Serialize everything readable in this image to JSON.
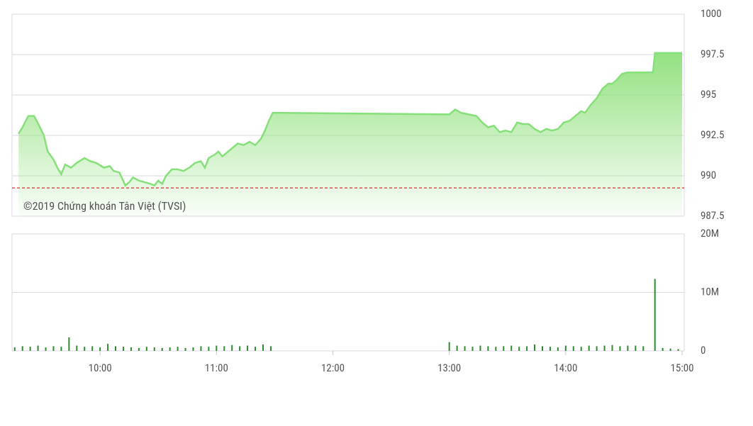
{
  "chart_data": [
    {
      "type": "area",
      "annotation": "©2019 Chứng khoán Tân Việt (TVSI)",
      "x": [
        558,
        560,
        563,
        566,
        569,
        571,
        573,
        576,
        578,
        580,
        582,
        585,
        588,
        592,
        595,
        598,
        602,
        605,
        607,
        610,
        613,
        615,
        617,
        620,
        623,
        626,
        628,
        630,
        632,
        634,
        637,
        640,
        643,
        646,
        649,
        652,
        654,
        656,
        659,
        661,
        663,
        665,
        668,
        671,
        674,
        677,
        680,
        683,
        685,
        687,
        689,
        780,
        783,
        786,
        790,
        794,
        797,
        800,
        803,
        806,
        809,
        812,
        815,
        818,
        821,
        824,
        827,
        830,
        833,
        836,
        839,
        842,
        845,
        848,
        850,
        853,
        856,
        859,
        862,
        864,
        866,
        869,
        872,
        885,
        886,
        900
      ],
      "values": [
        992.6,
        993.0,
        993.7,
        993.7,
        993.0,
        992.5,
        991.5,
        991.0,
        990.5,
        990.1,
        990.7,
        990.5,
        990.8,
        991.1,
        990.9,
        990.8,
        990.5,
        990.6,
        990.3,
        990.2,
        989.4,
        989.6,
        989.9,
        989.7,
        989.6,
        989.5,
        989.4,
        989.7,
        989.5,
        990.0,
        990.4,
        990.4,
        990.3,
        990.5,
        990.8,
        990.9,
        990.5,
        991.1,
        991.3,
        991.5,
        991.2,
        991.4,
        991.7,
        992.0,
        991.9,
        992.1,
        991.9,
        992.3,
        992.8,
        993.4,
        993.9,
        993.8,
        994.1,
        993.9,
        993.8,
        993.7,
        993.3,
        993.0,
        993.1,
        992.7,
        992.8,
        992.7,
        993.3,
        993.2,
        993.2,
        992.9,
        992.7,
        992.9,
        992.8,
        992.9,
        993.3,
        993.4,
        993.7,
        994.0,
        993.9,
        994.4,
        994.8,
        995.4,
        995.7,
        995.7,
        995.9,
        996.3,
        996.4,
        996.4,
        997.6,
        997.6
      ],
      "color": "#86e07a",
      "reference_line": 989.25,
      "reference_color": "#d9302c",
      "xlim": [
        555,
        900
      ],
      "ylim": [
        987.5,
        1000
      ],
      "yticks": [
        1000,
        997.5,
        995,
        992.5,
        990,
        987.5
      ],
      "grid": true
    },
    {
      "type": "bar",
      "x": [
        556,
        560,
        564,
        568,
        572,
        576,
        580,
        584,
        588,
        592,
        596,
        600,
        604,
        608,
        612,
        616,
        620,
        624,
        628,
        632,
        636,
        640,
        644,
        648,
        652,
        656,
        660,
        664,
        668,
        672,
        676,
        680,
        684,
        688,
        780,
        784,
        788,
        792,
        796,
        800,
        804,
        808,
        812,
        816,
        820,
        824,
        828,
        832,
        836,
        840,
        844,
        848,
        852,
        856,
        860,
        864,
        868,
        872,
        876,
        880,
        886,
        890,
        894,
        898
      ],
      "values": [
        0.6,
        0.8,
        0.7,
        0.9,
        0.6,
        0.8,
        0.7,
        2.3,
        0.9,
        0.7,
        0.8,
        0.6,
        1.2,
        0.8,
        0.7,
        0.6,
        0.5,
        0.7,
        0.6,
        0.5,
        0.6,
        0.7,
        0.5,
        0.6,
        0.8,
        0.7,
        0.9,
        0.8,
        1.0,
        0.8,
        0.9,
        0.7,
        1.1,
        0.8,
        1.5,
        0.9,
        0.8,
        0.7,
        0.9,
        0.8,
        0.7,
        0.8,
        0.9,
        0.7,
        0.8,
        1.1,
        0.8,
        0.7,
        0.6,
        0.9,
        0.8,
        0.7,
        0.9,
        0.8,
        0.9,
        1.0,
        0.8,
        0.9,
        0.9,
        0.8,
        12.3,
        0.5,
        0.4,
        0.3
      ],
      "color": "#2e8b2e",
      "xlim": [
        555,
        900
      ],
      "xticks": [
        {
          "value": 600,
          "label": "10:00"
        },
        {
          "value": 660,
          "label": "11:00"
        },
        {
          "value": 720,
          "label": "12:00"
        },
        {
          "value": 780,
          "label": "13:00"
        },
        {
          "value": 840,
          "label": "14:00"
        },
        {
          "value": 900,
          "label": "15:00"
        }
      ],
      "ylim": [
        0,
        20
      ],
      "yticks": [
        {
          "value": 20,
          "label": "20M"
        },
        {
          "value": 10,
          "label": "10M"
        },
        0
      ],
      "grid": true
    }
  ]
}
